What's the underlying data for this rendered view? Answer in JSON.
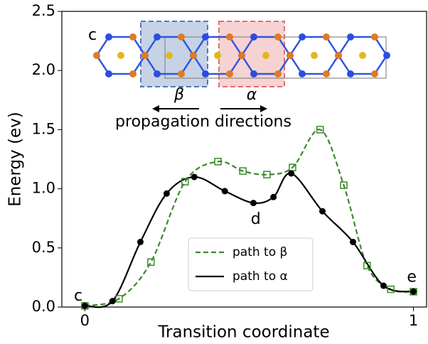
{
  "chart_data": {
    "type": "line",
    "xlabel": "Transition coordinate",
    "ylabel": "Energy (ev)",
    "xlim": [
      -0.07,
      1.04
    ],
    "ylim": [
      0,
      2.5
    ],
    "xticks": [
      0,
      1
    ],
    "yticks": [
      {
        "value": 0,
        "label": "0.0"
      },
      0.5,
      {
        "value": 1,
        "label": "1.0"
      },
      1.5,
      {
        "value": 2,
        "label": "2.0"
      },
      2.5
    ],
    "series": [
      {
        "name": "path to β",
        "color": "#3a8a2a",
        "dash": true,
        "marker": "square",
        "x": [
          0,
          0.104,
          0.201,
          0.305,
          0.405,
          0.481,
          0.554,
          0.632,
          0.716,
          0.788,
          0.859,
          0.931,
          1.0
        ],
        "values": [
          0.01,
          0.07,
          0.38,
          1.06,
          1.23,
          1.15,
          1.12,
          1.18,
          1.5,
          1.03,
          0.35,
          0.15,
          0.13
        ]
      },
      {
        "name": "path to α",
        "color": "#000000",
        "dash": false,
        "marker": "circle",
        "x": [
          0,
          0.084,
          0.169,
          0.249,
          0.333,
          0.426,
          0.513,
          0.574,
          0.628,
          0.723,
          0.816,
          0.909,
          1.0
        ],
        "values": [
          0.01,
          0.05,
          0.55,
          0.96,
          1.1,
          0.98,
          0.88,
          0.93,
          1.13,
          0.81,
          0.55,
          0.18,
          0.13
        ]
      }
    ],
    "annotations": [
      {
        "text": "c",
        "x": -0.02,
        "y": 0.09
      },
      {
        "text": "d",
        "x": 0.52,
        "y": 0.74
      },
      {
        "text": "e",
        "x": 0.995,
        "y": 0.25
      }
    ],
    "inset": {
      "label": "c",
      "beta": "β",
      "alpha": "α",
      "caption": "propagation directions"
    }
  }
}
